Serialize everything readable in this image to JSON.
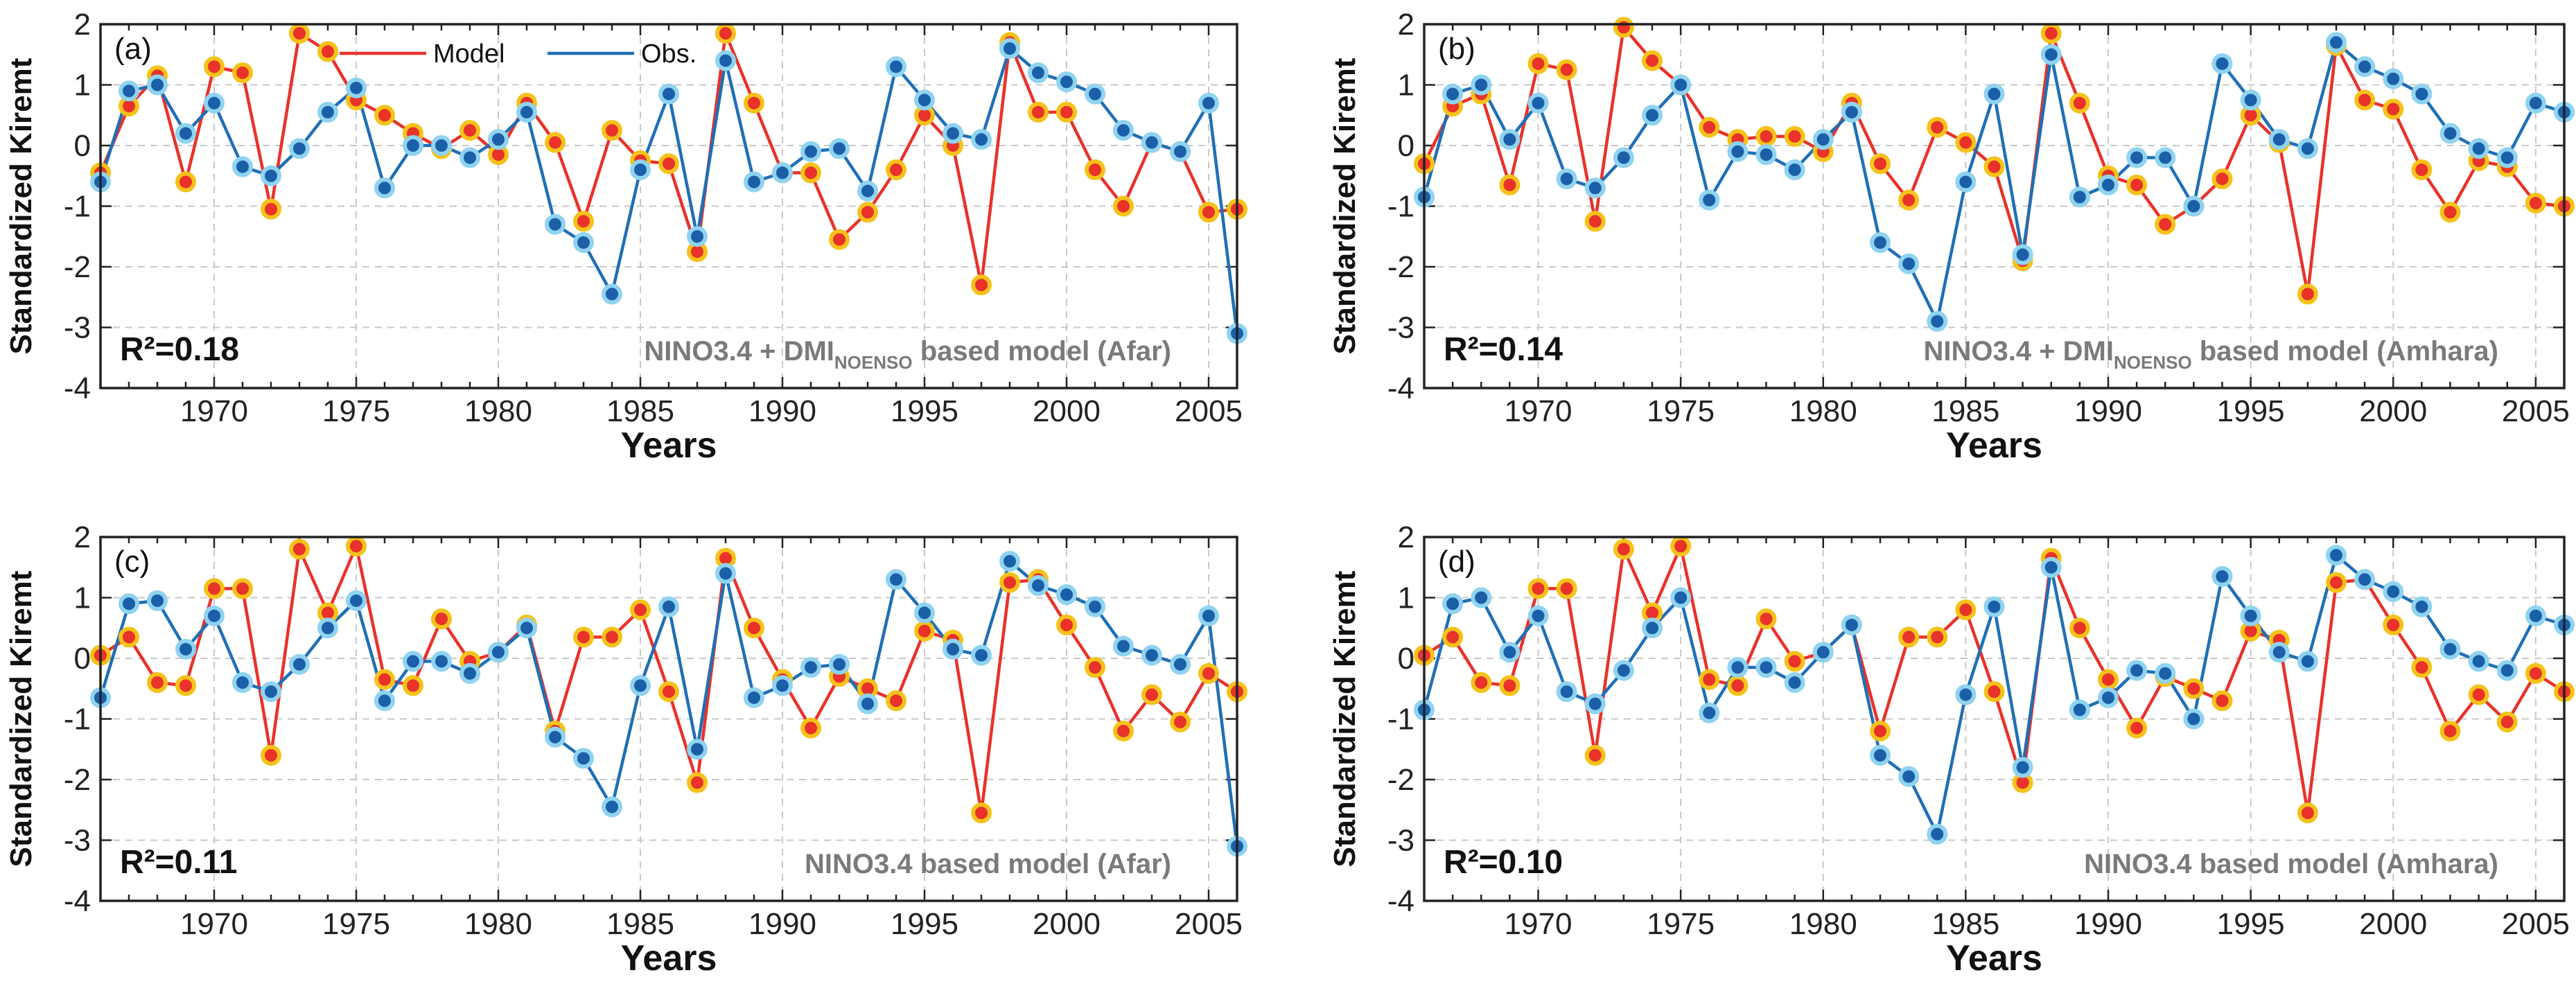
{
  "chart_data": [
    {
      "type": "line",
      "panel_label": "(a)",
      "r2_text": "R²=0.18",
      "note_prefix": "NINO3.4 + DMI",
      "note_sub": "NOENSO",
      "note_suffix": " based model (Afar)",
      "xlabel": "Years",
      "ylabel": "Standardized Kiremt",
      "xlim": [
        1966,
        2006
      ],
      "ylim": [
        -4,
        2
      ],
      "xticks": [
        1970,
        1975,
        1980,
        1985,
        1990,
        1995,
        2000,
        2005
      ],
      "yticks": [
        2,
        1,
        0,
        -1,
        -2,
        -3,
        -4
      ],
      "grid": true,
      "show_legend": true,
      "legend_position": "top",
      "x": [
        1966,
        1967,
        1968,
        1969,
        1970,
        1971,
        1972,
        1973,
        1974,
        1975,
        1976,
        1977,
        1978,
        1979,
        1980,
        1981,
        1982,
        1983,
        1984,
        1985,
        1986,
        1987,
        1988,
        1989,
        1990,
        1991,
        1992,
        1993,
        1994,
        1995,
        1996,
        1997,
        1998,
        1999,
        2000,
        2001,
        2002,
        2003,
        2004,
        2005,
        2006
      ],
      "series": [
        {
          "name": "Model",
          "values": [
            -0.45,
            0.65,
            1.15,
            -0.6,
            1.3,
            1.2,
            -1.05,
            1.85,
            1.55,
            0.75,
            0.5,
            0.2,
            -0.05,
            0.25,
            -0.15,
            0.7,
            0.05,
            -1.25,
            0.25,
            -0.25,
            -0.3,
            -1.75,
            1.85,
            0.7,
            -0.45,
            -0.45,
            -1.55,
            -1.1,
            -0.4,
            0.5,
            0.0,
            -2.3,
            1.7,
            0.55,
            0.55,
            -0.4,
            -1.0,
            0.05,
            -0.1,
            -1.1,
            -1.05
          ]
        },
        {
          "name": "Obs.",
          "values": [
            -0.6,
            0.9,
            1.0,
            0.2,
            0.7,
            -0.35,
            -0.5,
            -0.05,
            0.55,
            0.95,
            -0.7,
            0.0,
            0.0,
            -0.2,
            0.1,
            0.55,
            -1.3,
            -1.6,
            -2.45,
            -0.4,
            0.85,
            -1.5,
            1.4,
            -0.6,
            -0.45,
            -0.1,
            -0.05,
            -0.75,
            1.3,
            0.75,
            0.2,
            0.1,
            1.6,
            1.2,
            1.05,
            0.85,
            0.25,
            0.05,
            -0.1,
            0.7,
            -3.1
          ]
        }
      ]
    },
    {
      "type": "line",
      "panel_label": "(b)",
      "r2_text": "R²=0.14",
      "note_prefix": "NINO3.4 + DMI",
      "note_sub": "NOENSO",
      "note_suffix": " based model (Amhara)",
      "xlabel": "Years",
      "ylabel": "Standardized Kiremt",
      "xlim": [
        1966,
        2006
      ],
      "ylim": [
        -4,
        2
      ],
      "xticks": [
        1970,
        1975,
        1980,
        1985,
        1990,
        1995,
        2000,
        2005
      ],
      "yticks": [
        2,
        1,
        0,
        -1,
        -2,
        -3,
        -4
      ],
      "grid": true,
      "show_legend": false,
      "x": [
        1966,
        1967,
        1968,
        1969,
        1970,
        1971,
        1972,
        1973,
        1974,
        1975,
        1976,
        1977,
        1978,
        1979,
        1980,
        1981,
        1982,
        1983,
        1984,
        1985,
        1986,
        1987,
        1988,
        1989,
        1990,
        1991,
        1992,
        1993,
        1994,
        1995,
        1996,
        1997,
        1998,
        1999,
        2000,
        2001,
        2002,
        2003,
        2004,
        2005,
        2006
      ],
      "series": [
        {
          "name": "Model",
          "values": [
            -0.3,
            0.65,
            0.85,
            -0.65,
            1.35,
            1.25,
            -1.25,
            1.95,
            1.4,
            1.0,
            0.3,
            0.1,
            0.15,
            0.15,
            -0.1,
            0.7,
            -0.3,
            -0.9,
            0.3,
            0.05,
            -0.35,
            -1.9,
            1.85,
            0.7,
            -0.5,
            -0.65,
            -1.3,
            -1.0,
            -0.55,
            0.5,
            0.05,
            -2.45,
            1.65,
            0.75,
            0.6,
            -0.4,
            -1.1,
            -0.25,
            -0.35,
            -0.95,
            -1.0
          ]
        },
        {
          "name": "Obs.",
          "values": [
            -0.85,
            0.85,
            1.0,
            0.1,
            0.7,
            -0.55,
            -0.7,
            -0.2,
            0.5,
            1.0,
            -0.9,
            -0.1,
            -0.15,
            -0.4,
            0.1,
            0.55,
            -1.6,
            -1.95,
            -2.9,
            -0.6,
            0.85,
            -1.8,
            1.5,
            -0.85,
            -0.65,
            -0.2,
            -0.2,
            -1.0,
            1.35,
            0.75,
            0.1,
            -0.05,
            1.7,
            1.3,
            1.1,
            0.85,
            0.2,
            -0.05,
            -0.2,
            0.7,
            0.55
          ]
        }
      ]
    },
    {
      "type": "line",
      "panel_label": "(c)",
      "r2_text": "R²=0.11",
      "note_prefix": "NINO3.4 based model (Afar)",
      "note_sub": "",
      "note_suffix": "",
      "xlabel": "Years",
      "ylabel": "Standardized Kiremt",
      "xlim": [
        1966,
        2006
      ],
      "ylim": [
        -4,
        2
      ],
      "xticks": [
        1970,
        1975,
        1980,
        1985,
        1990,
        1995,
        2000,
        2005
      ],
      "yticks": [
        2,
        1,
        0,
        -1,
        -2,
        -3,
        -4
      ],
      "grid": true,
      "show_legend": false,
      "x": [
        1966,
        1967,
        1968,
        1969,
        1970,
        1971,
        1972,
        1973,
        1974,
        1975,
        1976,
        1977,
        1978,
        1979,
        1980,
        1981,
        1982,
        1983,
        1984,
        1985,
        1986,
        1987,
        1988,
        1989,
        1990,
        1991,
        1992,
        1993,
        1994,
        1995,
        1996,
        1997,
        1998,
        1999,
        2000,
        2001,
        2002,
        2003,
        2004,
        2005,
        2006
      ],
      "series": [
        {
          "name": "Model",
          "values": [
            0.05,
            0.35,
            -0.4,
            -0.45,
            1.15,
            1.15,
            -1.6,
            1.8,
            0.75,
            1.85,
            -0.35,
            -0.45,
            0.65,
            -0.05,
            0.1,
            0.55,
            -1.2,
            0.35,
            0.35,
            0.8,
            -0.55,
            -2.05,
            1.65,
            0.5,
            -0.35,
            -1.15,
            -0.3,
            -0.5,
            -0.7,
            0.45,
            0.3,
            -2.55,
            1.25,
            1.3,
            0.55,
            -0.15,
            -1.2,
            -0.6,
            -1.05,
            -0.25,
            -0.55
          ]
        },
        {
          "name": "Obs.",
          "values": [
            -0.65,
            0.9,
            0.95,
            0.15,
            0.7,
            -0.4,
            -0.55,
            -0.1,
            0.5,
            0.95,
            -0.7,
            -0.05,
            -0.05,
            -0.25,
            0.1,
            0.5,
            -1.3,
            -1.65,
            -2.45,
            -0.45,
            0.85,
            -1.5,
            1.4,
            -0.65,
            -0.45,
            -0.15,
            -0.1,
            -0.75,
            1.3,
            0.75,
            0.15,
            0.05,
            1.6,
            1.2,
            1.05,
            0.85,
            0.2,
            0.05,
            -0.1,
            0.7,
            -3.1
          ]
        }
      ]
    },
    {
      "type": "line",
      "panel_label": "(d)",
      "r2_text": "R²=0.10",
      "note_prefix": "NINO3.4 based model (Amhara)",
      "note_sub": "",
      "note_suffix": "",
      "xlabel": "Years",
      "ylabel": "Standardized Kiremt",
      "xlim": [
        1966,
        2006
      ],
      "ylim": [
        -4,
        2
      ],
      "xticks": [
        1970,
        1975,
        1980,
        1985,
        1990,
        1995,
        2000,
        2005
      ],
      "yticks": [
        2,
        1,
        0,
        -1,
        -2,
        -3,
        -4
      ],
      "grid": true,
      "show_legend": false,
      "x": [
        1966,
        1967,
        1968,
        1969,
        1970,
        1971,
        1972,
        1973,
        1974,
        1975,
        1976,
        1977,
        1978,
        1979,
        1980,
        1981,
        1982,
        1983,
        1984,
        1985,
        1986,
        1987,
        1988,
        1989,
        1990,
        1991,
        1992,
        1993,
        1994,
        1995,
        1996,
        1997,
        1998,
        1999,
        2000,
        2001,
        2002,
        2003,
        2004,
        2005,
        2006
      ],
      "series": [
        {
          "name": "Model",
          "values": [
            0.05,
            0.35,
            -0.4,
            -0.45,
            1.15,
            1.15,
            -1.6,
            1.8,
            0.75,
            1.85,
            -0.35,
            -0.45,
            0.65,
            -0.05,
            0.1,
            0.55,
            -1.2,
            0.35,
            0.35,
            0.8,
            -0.55,
            -2.05,
            1.65,
            0.5,
            -0.35,
            -1.15,
            -0.3,
            -0.5,
            -0.7,
            0.45,
            0.3,
            -2.55,
            1.25,
            1.3,
            0.55,
            -0.15,
            -1.2,
            -0.6,
            -1.05,
            -0.25,
            -0.55
          ]
        },
        {
          "name": "Obs.",
          "values": [
            -0.85,
            0.9,
            1.0,
            0.1,
            0.7,
            -0.55,
            -0.75,
            -0.2,
            0.5,
            1.0,
            -0.9,
            -0.15,
            -0.15,
            -0.4,
            0.1,
            0.55,
            -1.6,
            -1.95,
            -2.9,
            -0.6,
            0.85,
            -1.8,
            1.5,
            -0.85,
            -0.65,
            -0.2,
            -0.25,
            -1.0,
            1.35,
            0.7,
            0.1,
            -0.05,
            1.7,
            1.3,
            1.1,
            0.85,
            0.15,
            -0.05,
            -0.2,
            0.7,
            0.55
          ]
        }
      ]
    }
  ],
  "colors": {
    "model_line": "#e8322a",
    "model_marker_fill": "#e8322a",
    "model_marker_edge": "#f6c21a",
    "obs_line": "#1f6fb5",
    "obs_marker_fill": "#1a5fa8",
    "obs_marker_edge": "#8fd3f0",
    "grid": "#c8c8c8",
    "axis": "#222222",
    "note": "#7a7a7a"
  }
}
